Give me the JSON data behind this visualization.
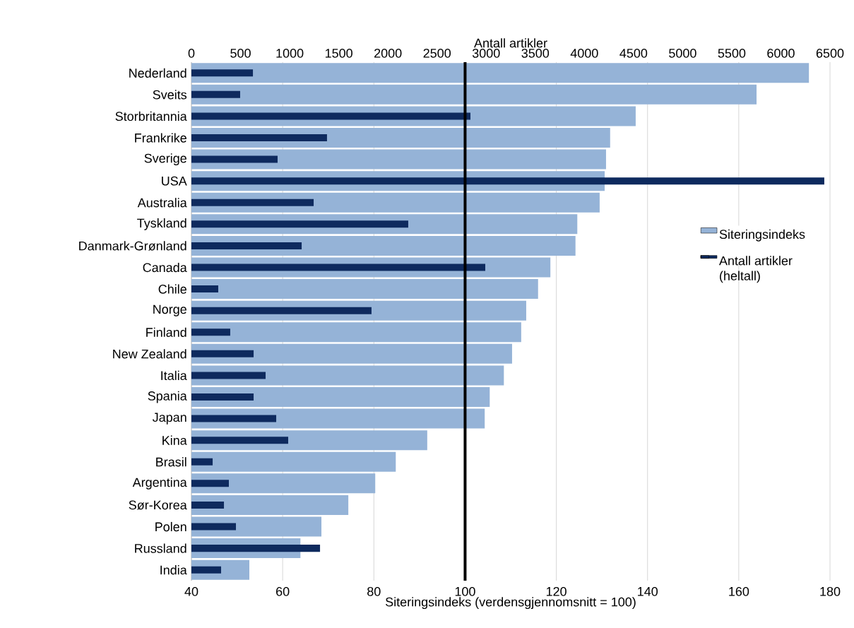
{
  "chart_data": {
    "type": "bar",
    "orientation": "horizontal",
    "categories": [
      "Nederland",
      "Sveits",
      "Storbritannia",
      "Frankrike",
      "Sverige",
      "USA",
      "Australia",
      "Tyskland",
      "Danmark-Grønland",
      "Canada",
      "Chile",
      "Norge",
      "Finland",
      "New Zealand",
      "Italia",
      "Spania",
      "Japan",
      "Kina",
      "Brasil",
      "Argentina",
      "Sør-Korea",
      "Polen",
      "Russland",
      "India"
    ],
    "series": [
      {
        "name": "Siteringsindeks",
        "color": "#95b3d7",
        "values": [
          175.4,
          163.9,
          137.4,
          131.8,
          130.9,
          130.6,
          129.5,
          124.6,
          124.2,
          118.7,
          116.0,
          113.4,
          112.3,
          110.3,
          108.5,
          105.4,
          104.3,
          91.7,
          84.8,
          80.3,
          74.4,
          68.5,
          63.9,
          52.7
        ]
      },
      {
        "name": "Antall artikler (heltall)",
        "color": "#0e2a5e",
        "axis": "x2",
        "values": [
          626,
          496,
          2840,
          1380,
          877,
          6442,
          1244,
          2207,
          1122,
          2991,
          273,
          1833,
          395,
          633,
          755,
          633,
          863,
          985,
          216,
          381,
          331,
          453,
          1309,
          302
        ]
      }
    ],
    "xlabel": "Siteringsindeks (verdensgjennomsnitt = 100)",
    "x2label": "Antall artikler",
    "xlim": [
      40,
      180
    ],
    "xticks": [
      40,
      60,
      80,
      100,
      120,
      140,
      160,
      180
    ],
    "x2lim": [
      0,
      6500
    ],
    "x2ticks": [
      0,
      500,
      1000,
      1500,
      2000,
      2500,
      3000,
      3500,
      4000,
      4500,
      5000,
      5500,
      6000,
      6500
    ],
    "ref_lines": [
      {
        "axis": "x",
        "value": 100,
        "color": "#000000"
      }
    ],
    "grid": "x",
    "legend": "right"
  }
}
